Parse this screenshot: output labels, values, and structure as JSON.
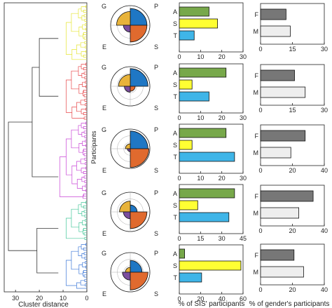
{
  "colors": {
    "G": "#E8B33A",
    "P": "#1F77C4",
    "E": "#7B4E9E",
    "S_polar": "#E06A2E",
    "A": "#77A84A",
    "S_bar": "#FFFF33",
    "T": "#3FB5E8",
    "F": "#777777",
    "M": "#EEEEEE",
    "cluster_colors": [
      "#E6E633",
      "#E8474A",
      "#C844D6",
      "#44C79A",
      "#3D78D8"
    ]
  },
  "dendrogram": {
    "xlabel": "Cluster distance",
    "ticks": [
      30,
      20,
      10,
      0
    ],
    "ylabel": "Participants"
  },
  "polar_labels": {
    "g": "G",
    "p": "P",
    "e": "E",
    "s": "S"
  },
  "sis_xlabel": "% of SIS' participants",
  "gender_xlabel": "% of gender's participants",
  "chart_data": [
    {
      "type": "polar-area",
      "cluster": 1,
      "segments": {
        "G": 0.7,
        "P": 0.85,
        "E": 0.35,
        "S": 0.85
      }
    },
    {
      "type": "polar-area",
      "cluster": 2,
      "segments": {
        "G": 0.6,
        "P": 0.9,
        "E": 0.3,
        "S": 0.25
      }
    },
    {
      "type": "polar-area",
      "cluster": 3,
      "segments": {
        "G": 0.25,
        "P": 0.9,
        "E": 0.15,
        "S": 0.95
      }
    },
    {
      "type": "polar-area",
      "cluster": 4,
      "segments": {
        "G": 0.55,
        "P": 0.35,
        "E": 0.35,
        "S": 0.85
      }
    },
    {
      "type": "polar-area",
      "cluster": 5,
      "segments": {
        "G": 0.25,
        "P": 0.6,
        "E": 0.4,
        "S": 0.9
      }
    },
    {
      "type": "bar",
      "orientation": "horizontal",
      "cluster": 1,
      "categories": [
        "A",
        "S",
        "T"
      ],
      "values": [
        14,
        18,
        7
      ],
      "xlim": [
        0,
        30
      ],
      "ticks": [
        "0",
        "10",
        "20",
        "30"
      ]
    },
    {
      "type": "bar",
      "orientation": "horizontal",
      "cluster": 2,
      "categories": [
        "A",
        "S",
        "T"
      ],
      "values": [
        22,
        6,
        14
      ],
      "xlim": [
        0,
        30
      ],
      "ticks": [
        "0",
        "10",
        "20",
        "30"
      ]
    },
    {
      "type": "bar",
      "orientation": "horizontal",
      "cluster": 3,
      "categories": [
        "A",
        "S",
        "T"
      ],
      "values": [
        22,
        6,
        26
      ],
      "xlim": [
        0,
        30
      ],
      "ticks": [
        "0",
        "10",
        "20",
        "30"
      ]
    },
    {
      "type": "bar",
      "orientation": "horizontal",
      "cluster": 4,
      "categories": [
        "A",
        "S",
        "T"
      ],
      "values": [
        39,
        13,
        35
      ],
      "xlim": [
        0,
        45
      ],
      "ticks": [
        "0",
        "15",
        "30",
        "45"
      ]
    },
    {
      "type": "bar",
      "orientation": "horizontal",
      "cluster": 5,
      "categories": [
        "A",
        "S",
        "T"
      ],
      "values": [
        5,
        58,
        21
      ],
      "xlim": [
        0,
        60
      ],
      "ticks": [
        "0",
        "20",
        "40",
        "60"
      ]
    },
    {
      "type": "bar",
      "orientation": "horizontal",
      "cluster": 1,
      "categories": [
        "F",
        "M"
      ],
      "values": [
        12,
        14
      ],
      "xlim": [
        0,
        30
      ],
      "ticks": [
        "0",
        "15",
        "30"
      ]
    },
    {
      "type": "bar",
      "orientation": "horizontal",
      "cluster": 2,
      "categories": [
        "F",
        "M"
      ],
      "values": [
        16,
        21
      ],
      "xlim": [
        0,
        30
      ],
      "ticks": [
        "0",
        "15",
        "30"
      ]
    },
    {
      "type": "bar",
      "orientation": "horizontal",
      "cluster": 3,
      "categories": [
        "F",
        "M"
      ],
      "values": [
        28,
        19
      ],
      "xlim": [
        0,
        40
      ],
      "ticks": [
        "0",
        "20",
        "40"
      ]
    },
    {
      "type": "bar",
      "orientation": "horizontal",
      "cluster": 4,
      "categories": [
        "F",
        "M"
      ],
      "values": [
        33,
        24
      ],
      "xlim": [
        0,
        40
      ],
      "ticks": [
        "0",
        "20",
        "40"
      ]
    },
    {
      "type": "bar",
      "orientation": "horizontal",
      "cluster": 5,
      "categories": [
        "F",
        "M"
      ],
      "values": [
        21,
        27
      ],
      "xlim": [
        0,
        40
      ],
      "ticks": [
        "0",
        "20",
        "40"
      ]
    }
  ]
}
